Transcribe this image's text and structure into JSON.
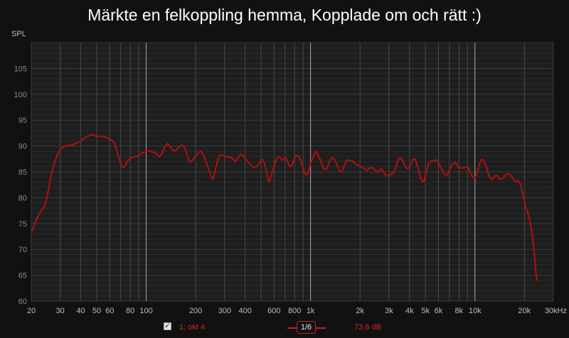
{
  "chart_data": {
    "type": "line",
    "title": "Märkte en felkoppling hemma, Kopplade om och rätt :)",
    "ylabel": "SPL",
    "xlabel": "",
    "x_scale": "log",
    "xlim": [
      20,
      30000
    ],
    "ylim": [
      60,
      110
    ],
    "grid": true,
    "x_tick_labels": [
      {
        "value": 20,
        "label": "20"
      },
      {
        "value": 30,
        "label": "30"
      },
      {
        "value": 40,
        "label": "40"
      },
      {
        "value": 50,
        "label": "50"
      },
      {
        "value": 60,
        "label": "60"
      },
      {
        "value": 80,
        "label": "80"
      },
      {
        "value": 100,
        "label": "100"
      },
      {
        "value": 200,
        "label": "200"
      },
      {
        "value": 300,
        "label": "300"
      },
      {
        "value": 400,
        "label": "400"
      },
      {
        "value": 600,
        "label": "600"
      },
      {
        "value": 800,
        "label": "800"
      },
      {
        "value": 1000,
        "label": "1k"
      },
      {
        "value": 2000,
        "label": "2k"
      },
      {
        "value": 3000,
        "label": "3k"
      },
      {
        "value": 4000,
        "label": "4k"
      },
      {
        "value": 5000,
        "label": "5k"
      },
      {
        "value": 6000,
        "label": "6k"
      },
      {
        "value": 8000,
        "label": "8k"
      },
      {
        "value": 10000,
        "label": "10k"
      },
      {
        "value": 20000,
        "label": "20k"
      },
      {
        "value": 30000,
        "label": "30kHz"
      }
    ],
    "y_ticks": [
      60,
      65,
      70,
      75,
      80,
      85,
      90,
      95,
      100,
      105
    ],
    "series": [
      {
        "name": "1: okt 4",
        "color": "#b30f0f",
        "points": [
          [
            20,
            73.2
          ],
          [
            21,
            75
          ],
          [
            22,
            76.5
          ],
          [
            23,
            77.5
          ],
          [
            24,
            78.3
          ],
          [
            25,
            80.2
          ],
          [
            26,
            83.3
          ],
          [
            27,
            85.5
          ],
          [
            28,
            87.2
          ],
          [
            29,
            88.5
          ],
          [
            30,
            89.4
          ],
          [
            32,
            90.0
          ],
          [
            34,
            90.1
          ],
          [
            36,
            90.3
          ],
          [
            38,
            90.6
          ],
          [
            40,
            91.0
          ],
          [
            42,
            91.5
          ],
          [
            44,
            91.9
          ],
          [
            46,
            92.2
          ],
          [
            48,
            92.1
          ],
          [
            50,
            91.8
          ],
          [
            52,
            91.9
          ],
          [
            55,
            91.8
          ],
          [
            58,
            91.6
          ],
          [
            60,
            91.3
          ],
          [
            62,
            91.1
          ],
          [
            64,
            90.6
          ],
          [
            66,
            89.4
          ],
          [
            68,
            87.8
          ],
          [
            70,
            86.5
          ],
          [
            72,
            85.8
          ],
          [
            74,
            86.0
          ],
          [
            76,
            86.8
          ],
          [
            78,
            87.3
          ],
          [
            80,
            87.6
          ],
          [
            84,
            87.9
          ],
          [
            88,
            88.0
          ],
          [
            90,
            88.2
          ],
          [
            95,
            88.7
          ],
          [
            100,
            88.9
          ],
          [
            105,
            89.1
          ],
          [
            110,
            88.8
          ],
          [
            115,
            88.6
          ],
          [
            120,
            87.9
          ],
          [
            125,
            88.6
          ],
          [
            130,
            89.9
          ],
          [
            135,
            90.5
          ],
          [
            140,
            89.9
          ],
          [
            145,
            89.2
          ],
          [
            150,
            89.0
          ],
          [
            155,
            89.5
          ],
          [
            160,
            89.9
          ],
          [
            165,
            90.2
          ],
          [
            170,
            89.8
          ],
          [
            175,
            88.9
          ],
          [
            180,
            87.6
          ],
          [
            185,
            86.9
          ],
          [
            190,
            87.1
          ],
          [
            195,
            87.7
          ],
          [
            200,
            88.1
          ],
          [
            210,
            88.8
          ],
          [
            215,
            89.0
          ],
          [
            220,
            88.6
          ],
          [
            230,
            87.2
          ],
          [
            240,
            85.4
          ],
          [
            250,
            84.0
          ],
          [
            255,
            83.6
          ],
          [
            260,
            84.6
          ],
          [
            270,
            86.8
          ],
          [
            280,
            88.2
          ],
          [
            290,
            88.3
          ],
          [
            300,
            88.1
          ],
          [
            310,
            87.9
          ],
          [
            320,
            87.9
          ],
          [
            330,
            87.8
          ],
          [
            340,
            87.4
          ],
          [
            350,
            87.0
          ],
          [
            360,
            87.6
          ],
          [
            370,
            88.1
          ],
          [
            380,
            88.4
          ],
          [
            390,
            88.0
          ],
          [
            400,
            87.6
          ],
          [
            420,
            86.8
          ],
          [
            440,
            86.1
          ],
          [
            460,
            85.8
          ],
          [
            480,
            86.3
          ],
          [
            500,
            87.2
          ],
          [
            510,
            87.4
          ],
          [
            520,
            86.9
          ],
          [
            540,
            84.9
          ],
          [
            550,
            83.5
          ],
          [
            560,
            83.0
          ],
          [
            570,
            83.6
          ],
          [
            580,
            84.6
          ],
          [
            600,
            86.2
          ],
          [
            620,
            87.5
          ],
          [
            640,
            88.0
          ],
          [
            660,
            87.6
          ],
          [
            680,
            87.2
          ],
          [
            700,
            87.8
          ],
          [
            720,
            87.2
          ],
          [
            740,
            86.3
          ],
          [
            760,
            86.0
          ],
          [
            780,
            86.6
          ],
          [
            800,
            87.7
          ],
          [
            820,
            88.2
          ],
          [
            840,
            88.1
          ],
          [
            860,
            87.6
          ],
          [
            880,
            86.7
          ],
          [
            900,
            85.8
          ],
          [
            920,
            84.8
          ],
          [
            940,
            84.4
          ],
          [
            960,
            84.6
          ],
          [
            980,
            85.5
          ],
          [
            1000,
            86.6
          ],
          [
            1050,
            88.3
          ],
          [
            1080,
            89.0
          ],
          [
            1100,
            88.6
          ],
          [
            1150,
            87.2
          ],
          [
            1200,
            85.6
          ],
          [
            1250,
            85.5
          ],
          [
            1300,
            86.9
          ],
          [
            1350,
            87.8
          ],
          [
            1400,
            87.4
          ],
          [
            1450,
            86.3
          ],
          [
            1500,
            85.2
          ],
          [
            1550,
            85.0
          ],
          [
            1600,
            86.1
          ],
          [
            1650,
            87.1
          ],
          [
            1700,
            87.3
          ],
          [
            1800,
            87.1
          ],
          [
            1900,
            86.4
          ],
          [
            2000,
            86.2
          ],
          [
            2100,
            85.7
          ],
          [
            2200,
            85.3
          ],
          [
            2300,
            85.8
          ],
          [
            2400,
            85.7
          ],
          [
            2500,
            85.2
          ],
          [
            2600,
            85.0
          ],
          [
            2700,
            85.6
          ],
          [
            2800,
            84.8
          ],
          [
            2900,
            84.2
          ],
          [
            3000,
            84.4
          ],
          [
            3100,
            84.5
          ],
          [
            3200,
            84.9
          ],
          [
            3300,
            85.9
          ],
          [
            3400,
            87.2
          ],
          [
            3500,
            87.7
          ],
          [
            3600,
            87.4
          ],
          [
            3700,
            86.6
          ],
          [
            3800,
            85.9
          ],
          [
            3900,
            85.6
          ],
          [
            4000,
            85.9
          ],
          [
            4100,
            86.7
          ],
          [
            4200,
            87.4
          ],
          [
            4300,
            87.5
          ],
          [
            4400,
            86.9
          ],
          [
            4500,
            85.8
          ],
          [
            4600,
            84.6
          ],
          [
            4700,
            83.6
          ],
          [
            4800,
            83.0
          ],
          [
            4900,
            83.3
          ],
          [
            5000,
            84.4
          ],
          [
            5200,
            86.4
          ],
          [
            5400,
            87.1
          ],
          [
            5600,
            87.1
          ],
          [
            5800,
            87.3
          ],
          [
            6000,
            86.8
          ],
          [
            6300,
            85.4
          ],
          [
            6600,
            84.4
          ],
          [
            6800,
            84.4
          ],
          [
            7000,
            85.4
          ],
          [
            7300,
            86.5
          ],
          [
            7600,
            86.8
          ],
          [
            7900,
            86.0
          ],
          [
            8200,
            85.7
          ],
          [
            8500,
            85.8
          ],
          [
            8800,
            85.9
          ],
          [
            9100,
            85.8
          ],
          [
            9400,
            84.8
          ],
          [
            9700,
            83.9
          ],
          [
            10000,
            83.8
          ],
          [
            10300,
            84.8
          ],
          [
            10700,
            86.6
          ],
          [
            11000,
            87.5
          ],
          [
            11400,
            86.9
          ],
          [
            11800,
            85.7
          ],
          [
            12200,
            84.1
          ],
          [
            12700,
            83.5
          ],
          [
            13200,
            84.2
          ],
          [
            13700,
            84.3
          ],
          [
            14200,
            83.6
          ],
          [
            14800,
            83.7
          ],
          [
            15400,
            84.4
          ],
          [
            16000,
            84.7
          ],
          [
            16600,
            84.3
          ],
          [
            17200,
            83.4
          ],
          [
            17800,
            83.1
          ],
          [
            18400,
            83.3
          ],
          [
            19000,
            82.5
          ],
          [
            19700,
            80.2
          ],
          [
            20300,
            78.4
          ],
          [
            21000,
            77.0
          ],
          [
            21700,
            75.2
          ],
          [
            22400,
            72.5
          ],
          [
            23000,
            69.0
          ],
          [
            23600,
            64.8
          ],
          [
            24000,
            63.9
          ]
        ]
      }
    ],
    "legend": {
      "checked": true,
      "label": "1: okt 4",
      "smoothing_label": "1/6",
      "value": "73,6 dB"
    }
  }
}
